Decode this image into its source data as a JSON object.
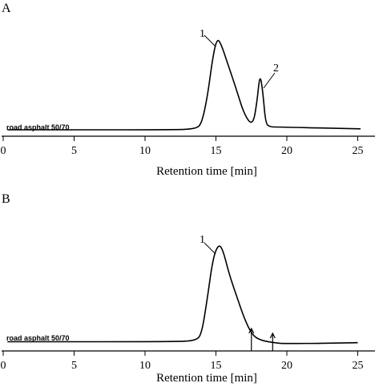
{
  "chart_data": [
    {
      "type": "line",
      "panel": "A",
      "xlabel": "Retention time [min]",
      "ylabel": "",
      "xlim": [
        0,
        26
      ],
      "xticks": [
        0,
        5,
        10,
        15,
        20,
        25
      ],
      "series": [
        {
          "name": "road asphalt 50/70",
          "x": [
            0.3,
            12.0,
            13.6,
            14.0,
            14.4,
            14.8,
            15.1,
            15.4,
            15.8,
            16.4,
            17.0,
            17.6,
            17.9,
            18.1,
            18.3,
            18.5,
            18.8,
            19.5,
            25.2
          ],
          "y": [
            0.0,
            0.0,
            0.01,
            0.07,
            0.35,
            0.8,
            0.98,
            0.9,
            0.72,
            0.45,
            0.16,
            0.04,
            0.3,
            0.6,
            0.42,
            0.07,
            0.03,
            0.03,
            0.01
          ]
        }
      ],
      "annotations": [
        {
          "text": "1",
          "x": 15.1,
          "y": 0.98
        },
        {
          "text": "2",
          "x": 18.1,
          "y": 0.6
        }
      ]
    },
    {
      "type": "line",
      "panel": "B",
      "xlabel": "Retention time [min]",
      "ylabel": "",
      "xlim": [
        0,
        26
      ],
      "xticks": [
        0,
        5,
        10,
        15,
        20,
        25
      ],
      "series": [
        {
          "name": "road asphalt 50/70",
          "x": [
            0.3,
            12.0,
            13.6,
            14.0,
            14.4,
            14.8,
            15.2,
            15.5,
            15.9,
            16.5,
            17.0,
            17.5,
            18.0,
            19.0,
            20.0,
            25.0
          ],
          "y": [
            0.02,
            0.02,
            0.03,
            0.1,
            0.45,
            0.85,
            0.98,
            0.92,
            0.7,
            0.45,
            0.25,
            0.1,
            0.04,
            0.01,
            0.0,
            0.01
          ]
        }
      ],
      "annotations": [
        {
          "text": "1",
          "x": 15.2,
          "y": 0.98
        }
      ],
      "arrows_at_x": [
        17.5,
        19.0
      ]
    }
  ]
}
